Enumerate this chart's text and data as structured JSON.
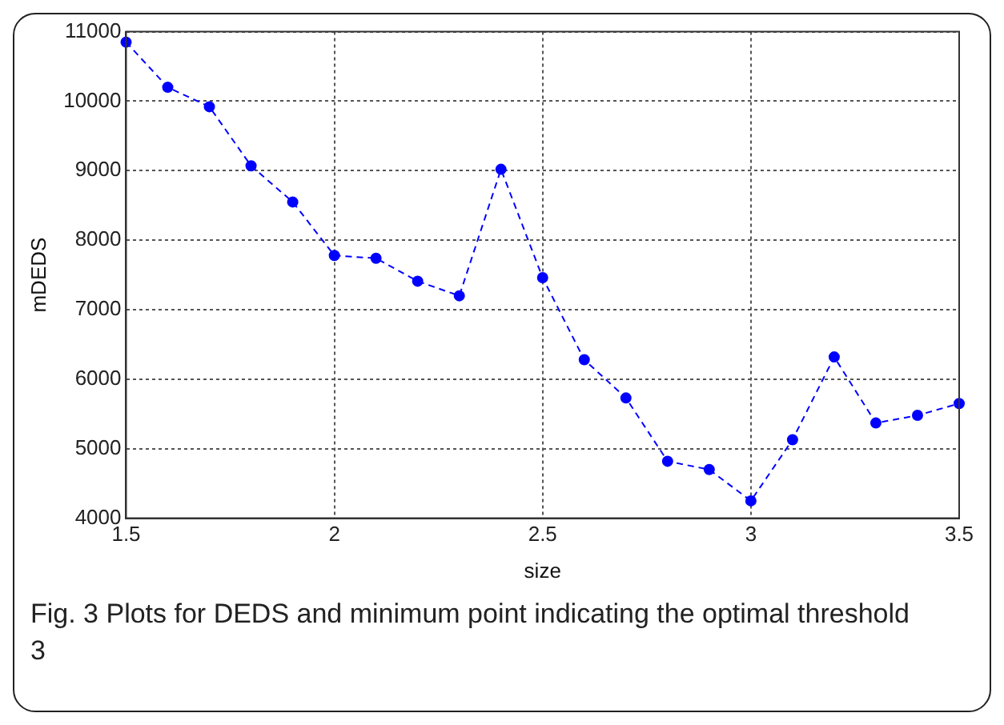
{
  "chart_data": {
    "type": "line",
    "xlabel": "size",
    "ylabel": "mDEDS",
    "x": [
      1.5,
      1.6,
      1.7,
      1.8,
      1.9,
      2.0,
      2.1,
      2.2,
      2.3,
      2.4,
      2.5,
      2.6,
      2.7,
      2.8,
      2.9,
      3.0,
      3.1,
      3.2,
      3.3,
      3.4,
      3.5
    ],
    "series": [
      {
        "color": "#0000ff",
        "values": [
          10850,
          10200,
          9920,
          9070,
          8550,
          7780,
          7740,
          7410,
          7200,
          9020,
          7460,
          6280,
          5730,
          4820,
          4700,
          4250,
          5130,
          6320,
          5370,
          5480,
          5650
        ]
      }
    ],
    "xlim": [
      1.5,
      3.5
    ],
    "xticks": [
      1.5,
      2,
      2.5,
      3,
      3.5
    ],
    "ylim": [
      4000,
      11000
    ],
    "yticks": [
      4000,
      5000,
      6000,
      7000,
      8000,
      9000,
      10000,
      11000
    ],
    "grid": true,
    "legend": false,
    "marker": "circle",
    "line_style": "dashed",
    "annotations": [
      "Fig. 3 Plots for DEDS and minimum point indicating the optimal threshold 3"
    ]
  }
}
